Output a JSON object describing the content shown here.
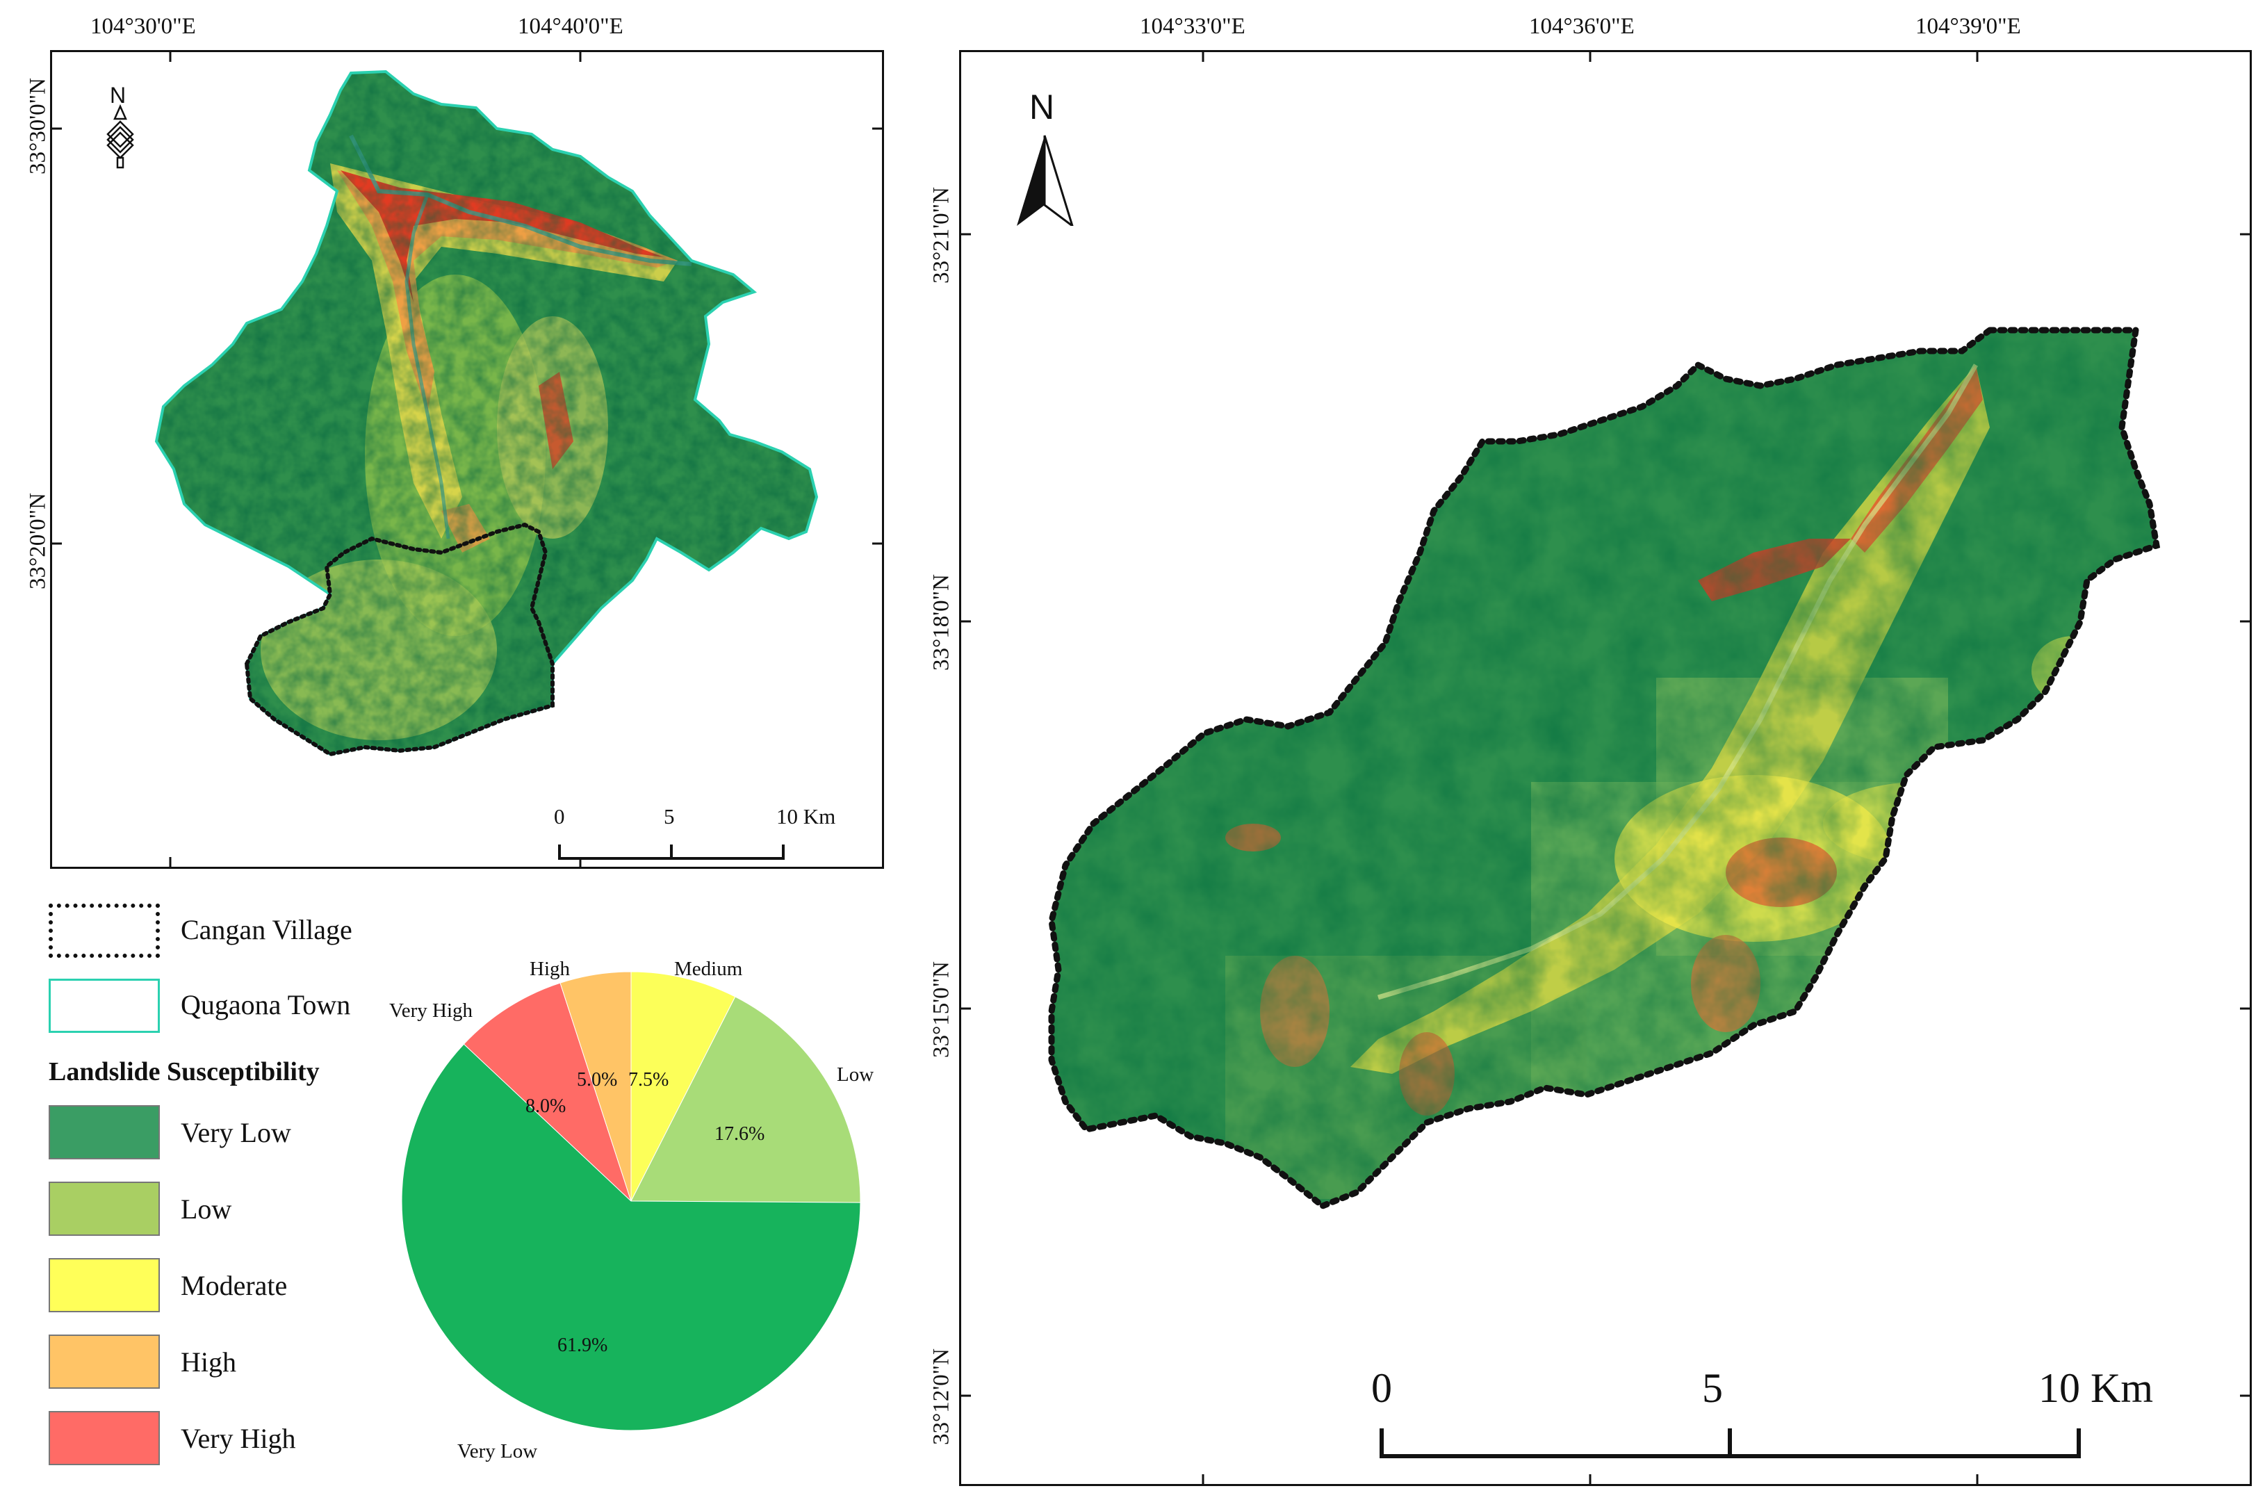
{
  "left_map": {
    "top_coords": [
      "104°30'0\"E",
      "104°40'0\"E"
    ],
    "left_coords": [
      "33°30'0\"N",
      "33°20'0\"N"
    ],
    "north_label": "N",
    "scale_labels": [
      "0",
      "5",
      "10 Km"
    ]
  },
  "right_map": {
    "top_coords": [
      "104°33'0\"E",
      "104°36'0\"E",
      "104°39'0\"E"
    ],
    "left_coords": [
      "33°21'0\"N",
      "33°18'0\"N",
      "33°15'0\"N",
      "33°12'0\"N"
    ],
    "north_label": "N",
    "scale_labels": [
      "0",
      "5",
      "10 Km"
    ]
  },
  "legend": {
    "boundaries": [
      {
        "label": "Cangan Village",
        "style": "dotted",
        "color": "#111111"
      },
      {
        "label": "Qugaona Town",
        "style": "solid",
        "color": "#2bd1b0"
      }
    ],
    "title": "Landslide Susceptibility",
    "classes": [
      {
        "label": "Very Low",
        "color": "#3a9d64"
      },
      {
        "label": "Low",
        "color": "#a9cf63"
      },
      {
        "label": "Moderate",
        "color": "#ffff59"
      },
      {
        "label": "High",
        "color": "#ffc466"
      },
      {
        "label": "Very High",
        "color": "#ff6b66"
      }
    ]
  },
  "chart_data": {
    "type": "pie",
    "slices": [
      {
        "name": "Very Low",
        "value": 61.9,
        "label": "61.9%",
        "color": "#17b35c"
      },
      {
        "name": "Low",
        "value": 17.6,
        "label": "17.6%",
        "color": "#a8dc78"
      },
      {
        "name": "Medium",
        "value": 7.5,
        "label": "7.5%",
        "color": "#fcff59"
      },
      {
        "name": "High",
        "value": 5.0,
        "label": "5.0%",
        "color": "#ffc466"
      },
      {
        "name": "Very High",
        "value": 8.0,
        "label": "8.0%",
        "color": "#ff6b66"
      }
    ]
  }
}
